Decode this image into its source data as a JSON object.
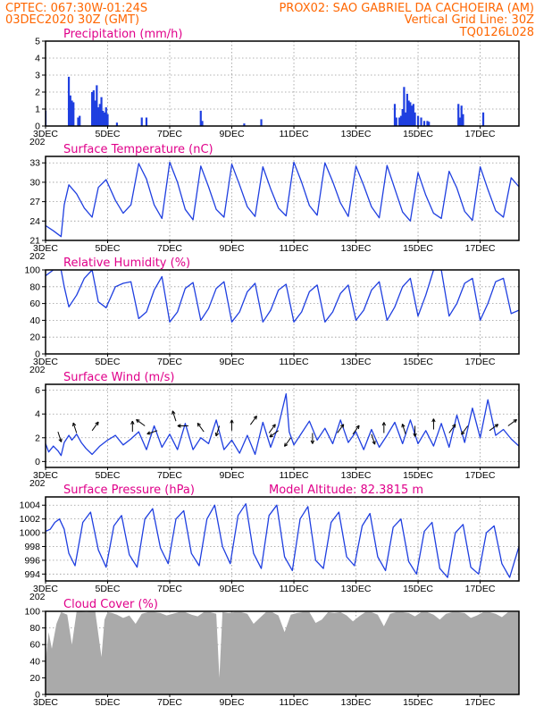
{
  "header": {
    "line1_left": "CPTEC:   067:30W-01:24S",
    "line1_right": "PROX02: SAO GABRIEL DA CACHOEIRA (AM)",
    "line2_left": "03DEC2020 30Z (GMT)",
    "line2_right": "Vertical Grid Line: 30Z",
    "line3_right": "TQ0126L028"
  },
  "colors": {
    "header": "#ff6600",
    "panel_title": "#e0008a",
    "series": "#1f3fe0",
    "cloud": "#aaaaaa",
    "grid": "#999999"
  },
  "x_axis": {
    "ticks": [
      "3DEC",
      "5DEC",
      "7DEC",
      "9DEC",
      "11DEC",
      "13DEC",
      "15DEC",
      "17DEC"
    ],
    "tick_days": [
      3,
      5,
      7,
      9,
      11,
      13,
      15,
      17
    ],
    "range_days": [
      3,
      18.25
    ],
    "year_fragment": "202"
  },
  "chart_data": [
    {
      "type": "bar",
      "title": "Precipitation (mm/h)",
      "ylim": [
        0,
        5
      ],
      "yticks": [
        0,
        1,
        2,
        3,
        4,
        5
      ],
      "x": [
        3.0,
        3.75,
        3.8,
        3.85,
        3.9,
        4.05,
        4.1,
        4.5,
        4.55,
        4.6,
        4.65,
        4.7,
        4.75,
        4.8,
        4.85,
        4.9,
        4.95,
        5.0,
        5.3,
        6.1,
        6.25,
        8.0,
        8.05,
        9.4,
        9.95,
        14.25,
        14.3,
        14.4,
        14.45,
        14.5,
        14.55,
        14.6,
        14.65,
        14.7,
        14.75,
        14.8,
        14.85,
        14.9,
        15.0,
        15.1,
        15.2,
        15.3,
        15.35,
        16.3,
        16.35,
        16.4,
        16.45,
        17.1
      ],
      "values": [
        0.9,
        2.9,
        1.8,
        1.5,
        1.4,
        0.5,
        0.6,
        2.0,
        2.1,
        1.5,
        2.4,
        1.1,
        1.3,
        1.7,
        0.9,
        0.8,
        1.1,
        0.7,
        0.2,
        0.5,
        0.5,
        0.9,
        0.3,
        0.15,
        0.4,
        1.3,
        0.5,
        0.5,
        0.6,
        1.0,
        2.3,
        0.8,
        1.9,
        1.5,
        1.4,
        1.2,
        1.3,
        0.8,
        0.6,
        0.5,
        0.3,
        0.3,
        0.25,
        1.3,
        0.5,
        1.2,
        0.7,
        0.8
      ]
    },
    {
      "type": "line",
      "title": "Surface Temperature (nC)",
      "ylim": [
        21,
        34
      ],
      "yticks": [
        21,
        24,
        27,
        30,
        33
      ],
      "x": [
        3.0,
        3.25,
        3.5,
        3.6,
        3.75,
        4.0,
        4.25,
        4.5,
        4.7,
        4.95,
        5.25,
        5.5,
        5.75,
        6.0,
        6.25,
        6.5,
        6.75,
        7.0,
        7.25,
        7.5,
        7.75,
        8.0,
        8.25,
        8.5,
        8.75,
        9.0,
        9.25,
        9.5,
        9.75,
        10.0,
        10.25,
        10.5,
        10.75,
        11.0,
        11.25,
        11.5,
        11.75,
        12.0,
        12.25,
        12.5,
        12.75,
        13.0,
        13.25,
        13.5,
        13.75,
        14.0,
        14.25,
        14.5,
        14.75,
        15.0,
        15.25,
        15.5,
        15.75,
        16.0,
        16.25,
        16.5,
        16.75,
        17.0,
        17.25,
        17.5,
        17.75,
        18.0,
        18.25
      ],
      "values": [
        23.3,
        22.5,
        21.6,
        26.5,
        29.6,
        28.2,
        26.0,
        24.6,
        29.2,
        30.4,
        27.2,
        25.2,
        26.5,
        32.9,
        30.5,
        26.5,
        24.4,
        33.1,
        30.0,
        25.8,
        24.2,
        32.5,
        29.3,
        25.8,
        24.6,
        32.8,
        29.6,
        26.2,
        24.7,
        32.4,
        29.0,
        26.0,
        24.8,
        33.1,
        30.0,
        26.4,
        24.9,
        33.0,
        30.1,
        26.8,
        24.7,
        32.5,
        29.5,
        26.2,
        24.5,
        32.6,
        29.0,
        25.4,
        24.0,
        31.5,
        28.0,
        25.2,
        24.4,
        31.7,
        29.1,
        25.5,
        24.1,
        32.4,
        28.9,
        25.6,
        24.6,
        30.7,
        29.3
      ]
    },
    {
      "type": "line",
      "title": "Relative Humidity (%)",
      "ylim": [
        0,
        100
      ],
      "yticks": [
        0,
        20,
        40,
        60,
        80,
        100
      ],
      "x": [
        3.0,
        3.25,
        3.5,
        3.6,
        3.75,
        4.0,
        4.25,
        4.5,
        4.7,
        4.95,
        5.25,
        5.5,
        5.75,
        6.0,
        6.25,
        6.5,
        6.75,
        7.0,
        7.25,
        7.5,
        7.75,
        8.0,
        8.25,
        8.5,
        8.75,
        9.0,
        9.25,
        9.5,
        9.75,
        10.0,
        10.25,
        10.5,
        10.75,
        11.0,
        11.25,
        11.5,
        11.75,
        12.0,
        12.25,
        12.5,
        12.75,
        13.0,
        13.25,
        13.5,
        13.75,
        14.0,
        14.25,
        14.5,
        14.75,
        15.0,
        15.25,
        15.5,
        15.75,
        16.0,
        16.25,
        16.5,
        16.75,
        17.0,
        17.25,
        17.5,
        17.75,
        18.0,
        18.25
      ],
      "values": [
        93,
        100,
        100,
        80,
        56,
        70,
        90,
        100,
        62,
        55,
        80,
        84,
        86,
        42,
        50,
        76,
        92,
        38,
        50,
        78,
        85,
        40,
        54,
        78,
        86,
        38,
        50,
        74,
        84,
        38,
        52,
        76,
        83,
        38,
        50,
        74,
        82,
        38,
        50,
        72,
        82,
        40,
        52,
        76,
        86,
        40,
        56,
        80,
        90,
        45,
        70,
        100,
        100,
        45,
        60,
        84,
        90,
        40,
        60,
        86,
        90,
        48,
        52
      ]
    },
    {
      "type": "line",
      "title": "Surface Wind (m/s)",
      "ylim": [
        -0.5,
        6.5
      ],
      "yticks": [
        0,
        2,
        4,
        6
      ],
      "x": [
        3.0,
        3.1,
        3.25,
        3.4,
        3.5,
        3.6,
        3.75,
        3.85,
        4.0,
        4.15,
        4.3,
        4.5,
        4.75,
        5.0,
        5.25,
        5.5,
        5.75,
        6.0,
        6.25,
        6.5,
        6.75,
        7.0,
        7.25,
        7.5,
        7.75,
        8.0,
        8.25,
        8.5,
        8.75,
        9.0,
        9.25,
        9.5,
        9.75,
        10.0,
        10.25,
        10.5,
        10.75,
        10.85,
        11.0,
        11.25,
        11.5,
        11.75,
        12.0,
        12.25,
        12.5,
        12.75,
        13.0,
        13.25,
        13.5,
        13.75,
        14.0,
        14.25,
        14.5,
        14.75,
        15.0,
        15.25,
        15.5,
        15.75,
        16.0,
        16.25,
        16.5,
        16.75,
        17.0,
        17.25,
        17.5,
        17.75,
        18.0,
        18.25
      ],
      "values": [
        1.5,
        0.8,
        1.3,
        0.9,
        0.5,
        1.6,
        2.2,
        1.8,
        2.3,
        1.6,
        1.1,
        0.6,
        1.3,
        1.8,
        2.2,
        1.4,
        1.9,
        2.5,
        1.0,
        3.0,
        1.2,
        2.3,
        1.0,
        3.2,
        1.0,
        2.0,
        1.5,
        3.5,
        1.0,
        1.8,
        0.7,
        2.2,
        0.6,
        3.3,
        1.2,
        3.0,
        5.7,
        2.5,
        1.4,
        2.4,
        3.4,
        1.8,
        2.8,
        1.5,
        3.5,
        1.6,
        2.5,
        1.0,
        2.7,
        1.2,
        2.2,
        3.3,
        1.5,
        3.5,
        1.5,
        2.6,
        1.3,
        3.2,
        1.2,
        3.9,
        1.6,
        4.5,
        2.0,
        5.2,
        2.2,
        2.7,
        1.9,
        1.3
      ]
    },
    {
      "type": "line",
      "title": "Surface Pressure (hPa)",
      "annotation": "Model Altitude: 82.3815 m",
      "ylim": [
        993,
        1005.2
      ],
      "yticks": [
        994,
        996,
        998,
        1000,
        1002,
        1004
      ],
      "x": [
        3.0,
        3.15,
        3.3,
        3.45,
        3.6,
        3.75,
        3.95,
        4.2,
        4.45,
        4.7,
        4.95,
        5.2,
        5.45,
        5.7,
        5.95,
        6.2,
        6.45,
        6.7,
        6.95,
        7.2,
        7.45,
        7.7,
        7.95,
        8.2,
        8.45,
        8.7,
        8.95,
        9.2,
        9.45,
        9.7,
        9.95,
        10.2,
        10.45,
        10.7,
        10.95,
        11.2,
        11.45,
        11.7,
        11.95,
        12.2,
        12.45,
        12.7,
        12.95,
        13.2,
        13.45,
        13.7,
        13.95,
        14.2,
        14.45,
        14.7,
        14.95,
        15.2,
        15.45,
        15.7,
        15.95,
        16.2,
        16.45,
        16.7,
        16.95,
        17.2,
        17.45,
        17.7,
        17.95,
        18.25
      ],
      "values": [
        1000.2,
        1000.5,
        1001.5,
        1002.0,
        1000.5,
        997.0,
        995.2,
        1001.5,
        1003.0,
        997.5,
        995.0,
        1001.0,
        1002.5,
        996.8,
        995.0,
        1002.0,
        1003.5,
        997.8,
        995.5,
        1002.0,
        1003.2,
        997.0,
        995.2,
        1002.0,
        1004.0,
        998.0,
        995.5,
        1002.5,
        1004.2,
        997.0,
        994.8,
        1002.5,
        1004.0,
        996.5,
        994.5,
        1002.0,
        1003.8,
        996.0,
        994.8,
        1001.5,
        1003.0,
        996.5,
        995.2,
        1001.0,
        1002.8,
        996.5,
        994.5,
        1000.8,
        1002.0,
        995.8,
        994.0,
        1000.2,
        1001.5,
        994.8,
        993.5,
        1000.0,
        1001.2,
        995.0,
        994.0,
        1000.0,
        1001.0,
        995.5,
        993.5,
        998.0
      ]
    },
    {
      "type": "area",
      "title": "Cloud Cover (%)",
      "ylim": [
        0,
        100
      ],
      "yticks": [
        0,
        20,
        40,
        60,
        80,
        100
      ],
      "x": [
        3.0,
        3.1,
        3.2,
        3.35,
        3.5,
        3.7,
        3.85,
        4.0,
        4.3,
        4.6,
        4.8,
        4.9,
        5.0,
        5.15,
        5.3,
        5.5,
        5.7,
        5.9,
        6.1,
        6.3,
        6.5,
        6.7,
        6.9,
        7.1,
        7.3,
        7.5,
        7.7,
        7.9,
        8.1,
        8.3,
        8.5,
        8.6,
        8.7,
        8.9,
        9.1,
        9.3,
        9.5,
        9.7,
        9.9,
        10.1,
        10.3,
        10.5,
        10.7,
        10.9,
        11.1,
        11.3,
        11.5,
        11.7,
        11.9,
        12.1,
        12.3,
        12.5,
        12.7,
        12.9,
        13.1,
        13.3,
        13.5,
        13.7,
        13.9,
        14.1,
        14.3,
        14.5,
        14.7,
        14.9,
        15.1,
        15.3,
        15.5,
        15.7,
        15.9,
        16.1,
        16.3,
        16.5,
        16.7,
        16.9,
        17.1,
        17.3,
        17.5,
        17.7,
        17.9,
        18.1,
        18.25
      ],
      "values": [
        40,
        75,
        55,
        85,
        99,
        96,
        60,
        100,
        99,
        100,
        45,
        90,
        99,
        98,
        96,
        92,
        95,
        85,
        97,
        99,
        99,
        98,
        95,
        97,
        99,
        99,
        96,
        94,
        99,
        99,
        97,
        20,
        99,
        98,
        99,
        99,
        97,
        85,
        92,
        99,
        99,
        95,
        75,
        96,
        98,
        99,
        99,
        86,
        90,
        99,
        98,
        99,
        95,
        88,
        94,
        99,
        99,
        96,
        82,
        97,
        99,
        99,
        98,
        94,
        99,
        99,
        96,
        90,
        97,
        99,
        99,
        98,
        92,
        95,
        99,
        99,
        97,
        93,
        99,
        99,
        99
      ]
    }
  ]
}
